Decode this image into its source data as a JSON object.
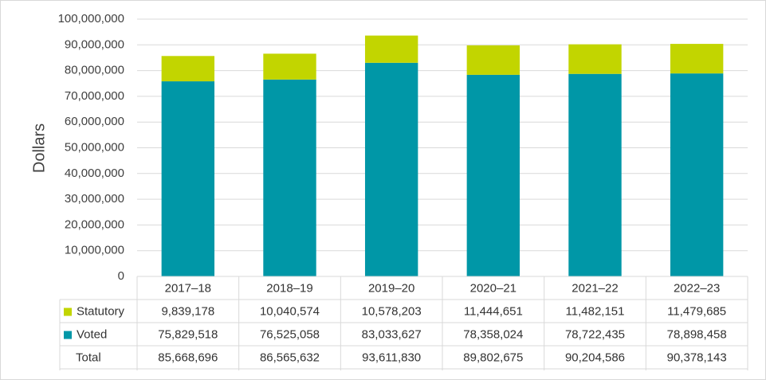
{
  "chart_data": {
    "type": "bar",
    "stacked": true,
    "title": "",
    "xlabel": "",
    "ylabel": "Dollars",
    "ylim": [
      0,
      100000000
    ],
    "y_ticks": [
      0,
      10000000,
      20000000,
      30000000,
      40000000,
      50000000,
      60000000,
      70000000,
      80000000,
      90000000,
      100000000
    ],
    "y_tick_labels": [
      "0",
      "10,000,000",
      "20,000,000",
      "30,000,000",
      "40,000,000",
      "50,000,000",
      "60,000,000",
      "70,000,000",
      "80,000,000",
      "90,000,000",
      "100,000,000"
    ],
    "grid": true,
    "categories": [
      "2017–18",
      "2018–19",
      "2019–20",
      "2020–21",
      "2021–22",
      "2022–23"
    ],
    "series": [
      {
        "name": "Voted",
        "color": "#0097a7",
        "values": [
          75829518,
          76525058,
          83033627,
          78358024,
          78722435,
          78898458
        ],
        "labels": [
          "75,829,518",
          "76,525,058",
          "83,033,627",
          "78,358,024",
          "78,722,435",
          "78,898,458"
        ]
      },
      {
        "name": "Statutory",
        "color": "#c2d500",
        "values": [
          9839178,
          10040574,
          10578203,
          11444651,
          11482151,
          11479685
        ],
        "labels": [
          "9,839,178",
          "10,040,574",
          "10,578,203",
          "11,444,651",
          "11,482,151",
          "11,479,685"
        ]
      }
    ],
    "table": {
      "row_order": [
        "Statutory",
        "Voted",
        "Total"
      ],
      "total_label": "Total",
      "totals": [
        85668696,
        86565632,
        93611830,
        89802675,
        90204586,
        90378143
      ],
      "total_labels": [
        "85,668,696",
        "86,565,632",
        "93,611,830",
        "89,802,675",
        "90,204,586",
        "90,378,143"
      ]
    }
  }
}
